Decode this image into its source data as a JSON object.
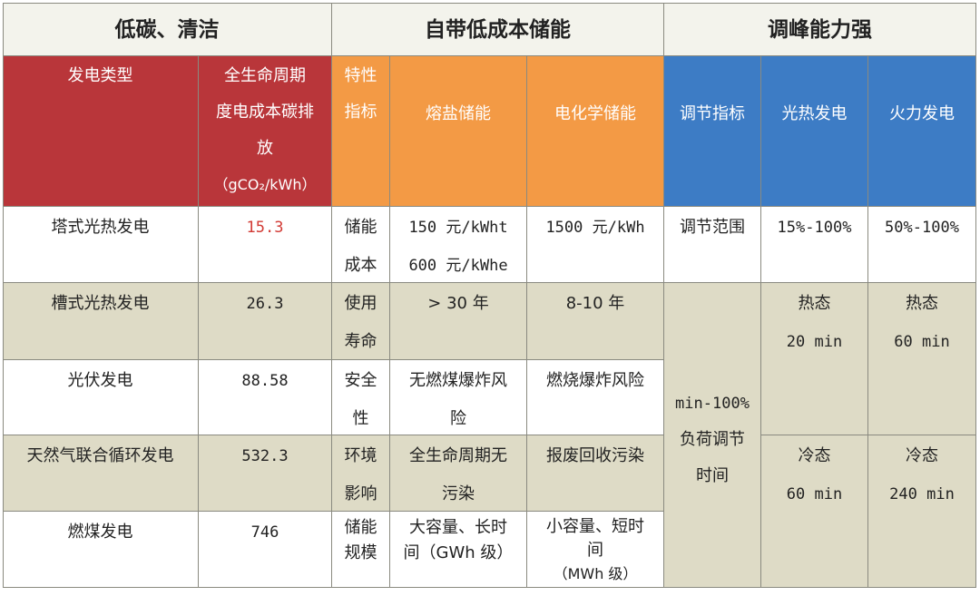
{
  "groups": {
    "low_carbon": "低碳、清洁",
    "storage": "自带低成本储能",
    "peak": "调峰能力强"
  },
  "headers": {
    "type": "发电类型",
    "carbon": [
      "全生命周期",
      "度电成本碳排",
      "放",
      "（gCO₂/kWh）"
    ],
    "feature": [
      "特性",
      "指标"
    ],
    "molten": "熔盐储能",
    "electro": "电化学储能",
    "adjust": "调节指标",
    "csp": "光热发电",
    "thermal": "火力发电"
  },
  "rows": [
    {
      "type": "塔式光热发电",
      "carbon": "15.3"
    },
    {
      "type": "槽式光热发电",
      "carbon": "26.3"
    },
    {
      "type": "光伏发电",
      "carbon": "88.58"
    },
    {
      "type": "天然气联合循环发电",
      "carbon": "532.3"
    },
    {
      "type": "燃煤发电",
      "carbon": "746"
    }
  ],
  "storage_rows": [
    {
      "feature": [
        "储能",
        "成本"
      ],
      "molten": [
        "150 元/kWht",
        "600 元/kWhe"
      ],
      "electro": [
        "1500 元/kWh"
      ]
    },
    {
      "feature": [
        "使用",
        "寿命"
      ],
      "molten": [
        "> 30 年"
      ],
      "electro": [
        "8-10 年"
      ]
    },
    {
      "feature": [
        "安全",
        "性"
      ],
      "molten": [
        "无燃煤爆炸风",
        "险"
      ],
      "electro": [
        "燃烧爆炸风险"
      ]
    },
    {
      "feature": [
        "环境",
        "影响"
      ],
      "molten": [
        "全生命周期无",
        "污染"
      ],
      "electro": [
        "报废回收污染"
      ]
    },
    {
      "feature": [
        "储能",
        "规模"
      ],
      "molten": [
        "大容量、长时",
        "间（GWh 级）"
      ],
      "electro": [
        "小容量、短时",
        "间",
        "（MWh 级）"
      ]
    }
  ],
  "peak_rows": {
    "range_label": "调节范围",
    "csp_range": "15%-100%",
    "thermal_range": "50%-100%",
    "time_label": [
      "min-100%",
      "负荷调节",
      "时间"
    ],
    "hot": {
      "label": "热态",
      "csp": "20 min",
      "thermal": "60 min"
    },
    "cold": {
      "label": "冷态",
      "csp": "60 min",
      "thermal": "240 min"
    }
  }
}
